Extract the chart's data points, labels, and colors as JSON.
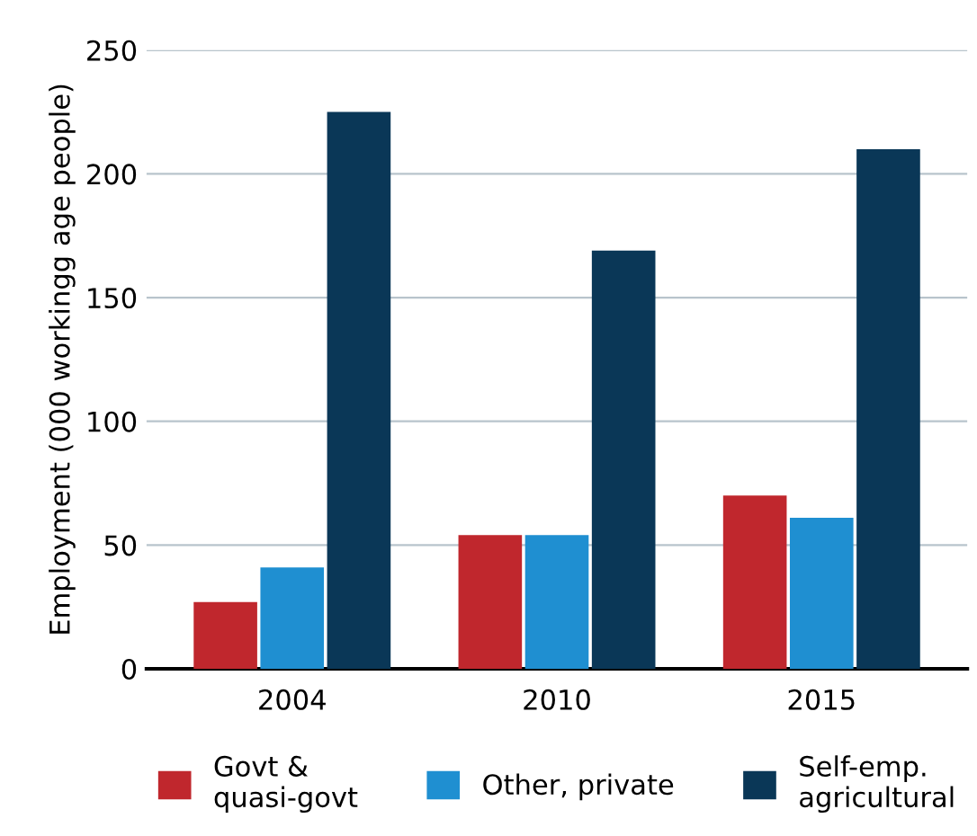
{
  "chart_data": {
    "type": "bar",
    "ylabel": "Employment (000 workingg age people)",
    "categories": [
      "2004",
      "2010",
      "2015"
    ],
    "series": [
      {
        "name": "Govt &\nquasi-govt",
        "color": "#c0272d",
        "values": [
          27,
          54,
          70
        ]
      },
      {
        "name": "Other, private",
        "color": "#1f8fd1",
        "values": [
          41,
          54,
          61
        ]
      },
      {
        "name": "Self-emp.\nagricultural",
        "color": "#0a3757",
        "values": [
          225,
          169,
          210
        ]
      }
    ],
    "ylim": [
      0,
      250
    ],
    "yticks": [
      0,
      50,
      100,
      150,
      200,
      250
    ],
    "grid": "y",
    "legend": "bottom"
  }
}
